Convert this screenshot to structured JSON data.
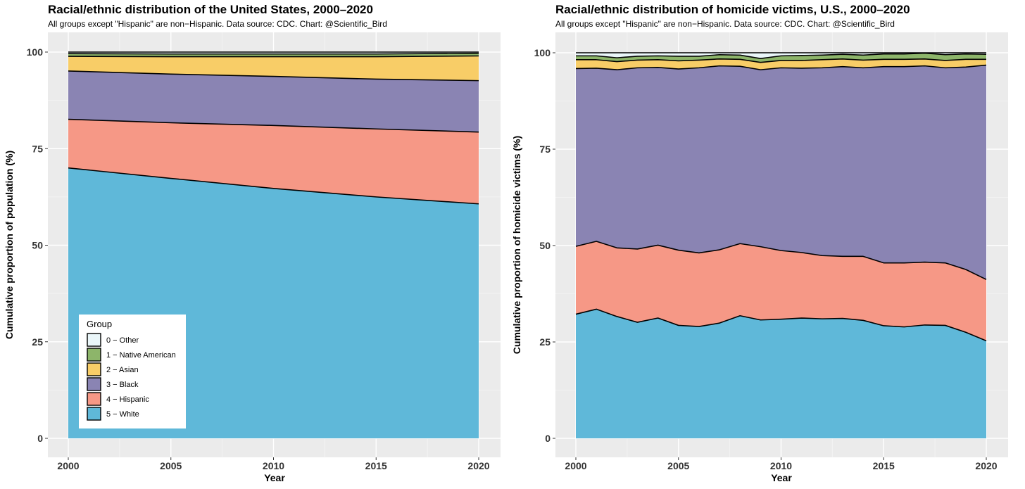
{
  "chart_data": [
    {
      "type": "area",
      "stacked": true,
      "title": "Racial/ethnic distribution of the United States, 2000–2020",
      "subtitle": "All groups except \"Hispanic\" are non−Hispanic. Data source: CDC. Chart: @Scientific_Bird",
      "xlabel": "Year",
      "ylabel": "Cumulative proportion of population (%)",
      "xlim": [
        2000,
        2020
      ],
      "ylim": [
        0,
        100
      ],
      "xticks": [
        2000,
        2005,
        2010,
        2015,
        2020
      ],
      "yticks": [
        0,
        25,
        50,
        75,
        100
      ],
      "grid": true,
      "legend": {
        "title": "Group",
        "position": "bottom-left",
        "entries": [
          "0 − Other",
          "1 − Native American",
          "2 − Asian",
          "3 − Black",
          "4 − Hispanic",
          "5 − White"
        ]
      },
      "x": [
        2000,
        2005,
        2010,
        2015,
        2020
      ],
      "series": [
        {
          "name": "5 − White",
          "color": "#5fb8d9",
          "values": [
            70.0,
            67.3,
            64.7,
            62.5,
            60.7
          ]
        },
        {
          "name": "4 − Hispanic",
          "color": "#f69886",
          "values": [
            12.6,
            14.4,
            16.3,
            17.6,
            18.6
          ]
        },
        {
          "name": "3 − Black",
          "color": "#8a84b3",
          "values": [
            12.5,
            12.6,
            12.7,
            12.9,
            13.3
          ]
        },
        {
          "name": "2 − Asian",
          "color": "#f8cd67",
          "values": [
            3.8,
            4.5,
            5.1,
            5.8,
            6.4
          ]
        },
        {
          "name": "1 − Native American",
          "color": "#8db56a",
          "values": [
            0.7,
            0.7,
            0.7,
            0.7,
            0.7
          ]
        },
        {
          "name": "0 − Other",
          "color": "#eaf6f9",
          "values": [
            0.4,
            0.5,
            0.5,
            0.5,
            0.3
          ]
        }
      ]
    },
    {
      "type": "area",
      "stacked": true,
      "title": "Racial/ethnic distribution of homicide victims, U.S., 2000–2020",
      "subtitle": "All groups except \"Hispanic\" are non−Hispanic. Data source: CDC. Chart: @Scientific_Bird",
      "xlabel": "Year",
      "ylabel": "Cumulative proportion of homicide victims (%)",
      "xlim": [
        2000,
        2020
      ],
      "ylim": [
        0,
        100
      ],
      "xticks": [
        2000,
        2005,
        2010,
        2015,
        2020
      ],
      "yticks": [
        0,
        25,
        50,
        75,
        100
      ],
      "grid": true,
      "x": [
        2000,
        2001,
        2002,
        2003,
        2004,
        2005,
        2006,
        2007,
        2008,
        2009,
        2010,
        2011,
        2012,
        2013,
        2014,
        2015,
        2016,
        2017,
        2018,
        2019,
        2020
      ],
      "series": [
        {
          "name": "5 − White",
          "color": "#5fb8d9",
          "values": [
            32.2,
            33.5,
            31.6,
            30.1,
            31.2,
            29.3,
            29.0,
            29.9,
            31.8,
            30.7,
            30.9,
            31.2,
            31.0,
            31.1,
            30.6,
            29.2,
            28.9,
            29.4,
            29.3,
            27.5,
            25.3
          ]
        },
        {
          "name": "4 − Hispanic",
          "color": "#f69886",
          "values": [
            17.6,
            17.6,
            17.8,
            19.0,
            18.9,
            19.5,
            19.1,
            19.0,
            18.7,
            19.0,
            17.8,
            17.0,
            16.4,
            16.1,
            16.6,
            16.3,
            16.6,
            16.3,
            16.2,
            16.3,
            15.9
          ]
        },
        {
          "name": "3 − Black",
          "color": "#8a84b3",
          "values": [
            46.1,
            44.9,
            46.2,
            47.0,
            46.1,
            47.0,
            48.0,
            47.7,
            46.0,
            45.9,
            47.4,
            47.8,
            48.7,
            49.2,
            48.9,
            50.9,
            50.9,
            50.9,
            50.6,
            52.5,
            55.6
          ]
        },
        {
          "name": "2 − Asian",
          "color": "#f8cd67",
          "values": [
            2.3,
            2.2,
            2.1,
            2.0,
            2.0,
            2.1,
            2.0,
            1.8,
            1.8,
            1.9,
            1.9,
            2.0,
            2.1,
            2.0,
            2.0,
            1.9,
            1.9,
            1.8,
            1.9,
            2.0,
            1.5
          ]
        },
        {
          "name": "1 − Native American",
          "color": "#8db56a",
          "values": [
            1.0,
            1.0,
            1.0,
            1.0,
            1.0,
            1.2,
            1.0,
            1.1,
            1.1,
            1.0,
            1.2,
            1.3,
            1.2,
            1.2,
            1.3,
            1.4,
            1.4,
            1.5,
            1.5,
            1.4,
            1.3
          ]
        },
        {
          "name": "0 − Other",
          "color": "#eaf6f9",
          "values": [
            0.8,
            0.8,
            1.3,
            0.9,
            0.8,
            0.9,
            0.9,
            0.5,
            0.6,
            1.5,
            0.8,
            0.7,
            0.6,
            0.4,
            0.6,
            0.3,
            0.3,
            0.1,
            0.5,
            0.3,
            0.4
          ]
        }
      ]
    }
  ]
}
